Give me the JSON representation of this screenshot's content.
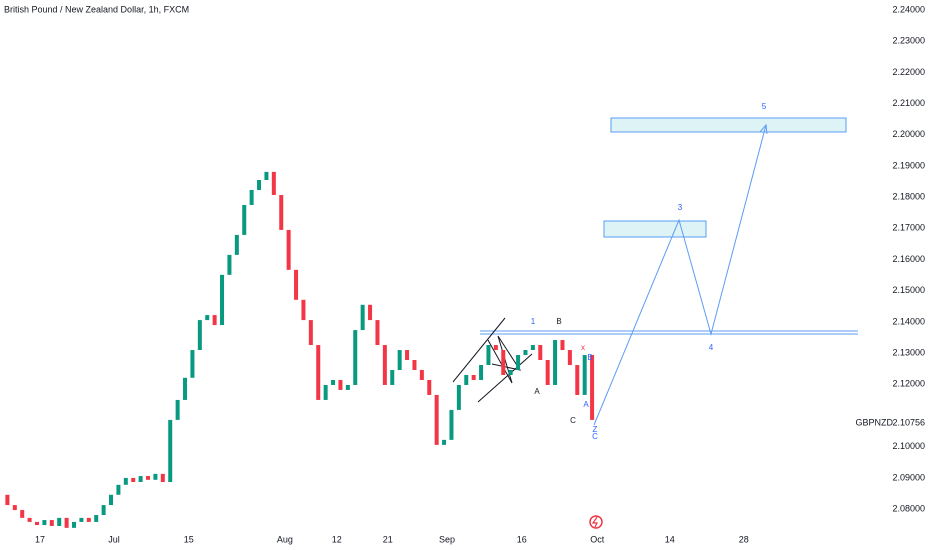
{
  "chart_data": {
    "type": "candlestick",
    "title": "British Pound / New Zealand Dollar, 1h, FXCM",
    "symbol": "GBPNZD",
    "last_price": {
      "value": 2.10756,
      "label": "2.10756"
    },
    "x": [
      0,
      1,
      2,
      3,
      4,
      5,
      6,
      7,
      8,
      9,
      10,
      11,
      12,
      13,
      14,
      15,
      16,
      17,
      18,
      19,
      20,
      21,
      22,
      23,
      24,
      25,
      26,
      27,
      28,
      29,
      30,
      31,
      32,
      33,
      34,
      35,
      36,
      37,
      38,
      39,
      40,
      41,
      42,
      43,
      44,
      45,
      46,
      47,
      48,
      49,
      50,
      51,
      52,
      53,
      54,
      55,
      56,
      57,
      58,
      59,
      60,
      61,
      62,
      63,
      64,
      65,
      66,
      67,
      68,
      69,
      70,
      71,
      72,
      73,
      74,
      75,
      76,
      77,
      78,
      79,
      80
    ],
    "series": [
      {
        "name": "GBPNZD",
        "up_color": "#089981",
        "down_color": "#f23645",
        "values": [
          2.0846,
          2.0813,
          2.0797,
          2.0772,
          2.0759,
          2.0749,
          2.0765,
          2.0746,
          2.0772,
          2.074,
          2.0759,
          2.0772,
          2.0759,
          2.0781,
          2.0813,
          2.0846,
          2.0878,
          2.09,
          2.0887,
          2.0906,
          2.0894,
          2.0913,
          2.0887,
          2.1086,
          2.115,
          2.1221,
          2.131,
          2.1406,
          2.1422,
          2.139,
          2.1551,
          2.1615,
          2.1679,
          2.1775,
          2.1823,
          2.1855,
          2.1881,
          2.1807,
          2.1695,
          2.1567,
          2.1471,
          2.1406,
          2.1326,
          2.115,
          2.1198,
          2.1214,
          2.1182,
          2.1198,
          2.1374,
          2.1455,
          2.1406,
          2.1326,
          2.1198,
          2.1246,
          2.131,
          2.1278,
          2.1246,
          2.1214,
          2.1166,
          2.1006,
          2.1022,
          2.1118,
          2.1198,
          2.123,
          2.1214,
          2.1262,
          2.1326,
          2.131,
          2.123,
          2.1246,
          2.1294,
          2.131,
          2.1326,
          2.1278,
          2.1198,
          2.1342,
          2.131,
          2.1262,
          2.1166,
          2.1294,
          2.1086
        ]
      }
    ],
    "xlim": [
      0,
      116.2
    ],
    "xticks": [
      {
        "value": 5.4,
        "label": "17"
      },
      {
        "value": 15.4,
        "label": "Jul"
      },
      {
        "value": 25.5,
        "label": "15"
      },
      {
        "value": 38.5,
        "label": "Aug"
      },
      {
        "value": 45.5,
        "label": "12"
      },
      {
        "value": 52.4,
        "label": "21"
      },
      {
        "value": 60.4,
        "label": "Sep"
      },
      {
        "value": 70.5,
        "label": "16"
      },
      {
        "value": 80.7,
        "label": "Oct"
      },
      {
        "value": 90.5,
        "label": "14"
      },
      {
        "value": 100.5,
        "label": "28"
      }
    ],
    "ylim": [
      2.0669,
      2.2432
    ],
    "yticks": [
      {
        "value": 2.08,
        "label": "2.08000"
      },
      {
        "value": 2.09,
        "label": "2.09000"
      },
      {
        "value": 2.1,
        "label": "2.10000"
      },
      {
        "value": 2.11,
        "label": "2.11000"
      },
      {
        "value": 2.12,
        "label": "2.12000"
      },
      {
        "value": 2.13,
        "label": "2.13000"
      },
      {
        "value": 2.14,
        "label": "2.14000"
      },
      {
        "value": 2.15,
        "label": "2.15000"
      },
      {
        "value": 2.16,
        "label": "2.16000"
      },
      {
        "value": 2.17,
        "label": "2.17000"
      },
      {
        "value": 2.18,
        "label": "2.18000"
      },
      {
        "value": 2.19,
        "label": "2.19000"
      },
      {
        "value": 2.2,
        "label": "2.20000"
      },
      {
        "value": 2.21,
        "label": "2.21000"
      },
      {
        "value": 2.22,
        "label": "2.22000"
      },
      {
        "value": 2.23,
        "label": "2.23000"
      },
      {
        "value": 2.24,
        "label": "2.24000"
      }
    ],
    "annotations": [
      "1",
      "B",
      "A",
      "C",
      "x",
      "B",
      "A",
      "Z",
      "C",
      "3",
      "4",
      "5"
    ]
  }
}
